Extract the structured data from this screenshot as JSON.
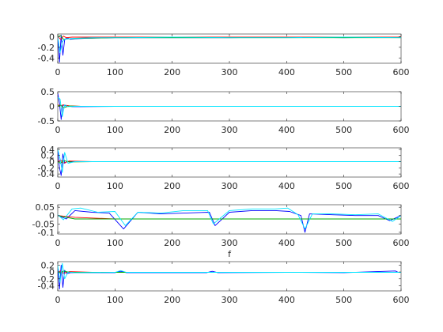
{
  "figure": {
    "background": "#ffffff"
  },
  "chart_data": [
    {
      "type": "line",
      "title": "",
      "xlabel": "",
      "ylabel": "",
      "xlim": [
        0,
        600
      ],
      "ylim": [
        -0.5,
        0.05
      ],
      "xticks": [
        0,
        100,
        200,
        300,
        400,
        500,
        600
      ],
      "yticks": [
        0,
        -0.2,
        -0.4
      ],
      "ytick_labels": [
        "0",
        "-0.2",
        "-0.4"
      ],
      "series": [
        {
          "color": "#0000ff",
          "x": [
            0,
            3,
            6,
            9,
            12,
            16,
            22,
            30,
            50,
            100,
            200,
            300,
            400,
            500,
            600
          ],
          "y": [
            0,
            -0.48,
            0.03,
            -0.35,
            -0.06,
            -0.02,
            -0.05,
            -0.04,
            -0.03,
            -0.02,
            -0.02,
            -0.02,
            -0.01,
            -0.02,
            -0.01
          ]
        },
        {
          "color": "#ff0000",
          "x": [
            0,
            5,
            10,
            15,
            25,
            60,
            150,
            300,
            450,
            600
          ],
          "y": [
            0,
            -0.05,
            0.01,
            -0.02,
            -0.01,
            -0.01,
            -0.01,
            -0.01,
            -0.01,
            -0.01
          ]
        },
        {
          "color": "#00aa00",
          "x": [
            0,
            5,
            10,
            20,
            40,
            100,
            250,
            400,
            600
          ],
          "y": [
            0,
            0.02,
            -0.05,
            -0.04,
            -0.03,
            -0.02,
            -0.02,
            -0.02,
            -0.02
          ]
        },
        {
          "color": "#00e5ff",
          "x": [
            0,
            4,
            8,
            12,
            18,
            30,
            60,
            120,
            200,
            300,
            400,
            500,
            600
          ],
          "y": [
            0,
            -0.3,
            -0.1,
            -0.05,
            -0.04,
            -0.03,
            -0.02,
            -0.02,
            -0.01,
            -0.02,
            -0.02,
            -0.01,
            -0.02
          ]
        }
      ]
    },
    {
      "type": "line",
      "title": "",
      "xlabel": "",
      "ylabel": "",
      "xlim": [
        0,
        600
      ],
      "ylim": [
        -0.5,
        0.5
      ],
      "xticks": [
        0,
        100,
        200,
        300,
        400,
        500,
        600
      ],
      "yticks": [
        0.5,
        0,
        -0.5
      ],
      "ytick_labels": [
        "0.5",
        "0",
        "-0.5"
      ],
      "series": [
        {
          "color": "#0000ff",
          "x": [
            0,
            3,
            6,
            9,
            13,
            18,
            25,
            40,
            100,
            200,
            300,
            400,
            500,
            600
          ],
          "y": [
            0.45,
            0.1,
            -0.45,
            0.05,
            0.02,
            0.02,
            -0.01,
            -0.01,
            0,
            0,
            0,
            0,
            0,
            0
          ]
        },
        {
          "color": "#ff0000",
          "x": [
            0,
            5,
            10,
            20,
            40,
            100,
            300,
            600
          ],
          "y": [
            0.05,
            0.02,
            0.05,
            0.02,
            0,
            0,
            0,
            0
          ]
        },
        {
          "color": "#00aa00",
          "x": [
            0,
            5,
            10,
            20,
            40,
            100,
            300,
            600
          ],
          "y": [
            0,
            0.05,
            -0.05,
            0.01,
            0,
            0,
            0,
            0
          ]
        },
        {
          "color": "#00e5ff",
          "x": [
            0,
            4,
            8,
            12,
            18,
            30,
            100,
            300,
            600
          ],
          "y": [
            0.3,
            0.25,
            -0.35,
            0.05,
            -0.01,
            0,
            0,
            0,
            0
          ]
        }
      ]
    },
    {
      "type": "line",
      "title": "",
      "xlabel": "",
      "ylabel": "",
      "xlim": [
        0,
        600
      ],
      "ylim": [
        -0.5,
        0.45
      ],
      "xticks": [
        0,
        100,
        200,
        300,
        400,
        500,
        600
      ],
      "yticks": [
        0.4,
        0.2,
        0,
        -0.2,
        -0.4
      ],
      "ytick_labels": [
        "0.4",
        "0.2",
        "0",
        "-0.2",
        "-0.4"
      ],
      "series": [
        {
          "color": "#0000ff",
          "x": [
            0,
            3,
            6,
            9,
            12,
            16,
            22,
            40,
            100,
            300,
            600
          ],
          "y": [
            0.35,
            -0.2,
            -0.45,
            0.25,
            -0.05,
            0,
            0,
            0,
            0,
            0,
            0
          ]
        },
        {
          "color": "#ff0000",
          "x": [
            0,
            5,
            10,
            20,
            60,
            300,
            600
          ],
          "y": [
            0,
            0.05,
            -0.05,
            0.02,
            0,
            0,
            0
          ]
        },
        {
          "color": "#00aa00",
          "x": [
            0,
            5,
            10,
            20,
            60,
            300,
            600
          ],
          "y": [
            0,
            -0.05,
            0.04,
            -0.01,
            0,
            0,
            0
          ]
        },
        {
          "color": "#00e5ff",
          "x": [
            0,
            4,
            8,
            12,
            18,
            30,
            100,
            300,
            600
          ],
          "y": [
            0.4,
            0.1,
            -0.35,
            0.3,
            -0.05,
            0,
            0,
            0,
            0
          ]
        }
      ]
    },
    {
      "type": "line",
      "title": "",
      "xlabel": "f",
      "ylabel": "",
      "xlim": [
        0,
        600
      ],
      "ylim": [
        -0.11,
        0.065
      ],
      "xticks": [
        0,
        100,
        200,
        300,
        400,
        500,
        600
      ],
      "yticks": [
        0.05,
        0,
        -0.05,
        -0.1
      ],
      "ytick_labels": [
        "0.05",
        "0",
        "-0.05",
        "-0.1"
      ],
      "series": [
        {
          "color": "#0000ff",
          "x": [
            0,
            15,
            30,
            60,
            90,
            115,
            140,
            180,
            220,
            265,
            275,
            300,
            340,
            380,
            405,
            425,
            432,
            440,
            480,
            520,
            560,
            580,
            600
          ],
          "y": [
            0,
            -0.02,
            0.03,
            0.02,
            0.015,
            -0.08,
            0.02,
            0.01,
            0.015,
            0.02,
            -0.06,
            0.02,
            0.03,
            0.03,
            0.025,
            0.0,
            -0.1,
            0.01,
            0.005,
            0.0,
            0.0,
            -0.03,
            0.0
          ]
        },
        {
          "color": "#ff0000",
          "x": [
            0,
            15,
            30,
            100,
            300,
            600
          ],
          "y": [
            0,
            -0.005,
            -0.01,
            -0.02,
            -0.02,
            -0.02
          ]
        },
        {
          "color": "#00aa00",
          "x": [
            0,
            15,
            30,
            100,
            200,
            300,
            400,
            500,
            600
          ],
          "y": [
            0,
            -0.01,
            -0.02,
            -0.02,
            -0.02,
            -0.02,
            -0.02,
            -0.02,
            -0.02
          ]
        },
        {
          "color": "#00e5ff",
          "x": [
            0,
            10,
            25,
            40,
            70,
            100,
            118,
            140,
            180,
            220,
            262,
            272,
            300,
            340,
            380,
            402,
            420,
            432,
            445,
            480,
            520,
            560,
            585,
            600
          ],
          "y": [
            0.005,
            -0.025,
            0.04,
            0.045,
            0.02,
            0.025,
            -0.06,
            0.02,
            0.015,
            0.03,
            0.03,
            -0.05,
            0.03,
            0.04,
            0.04,
            0.045,
            0.005,
            -0.08,
            0.01,
            0.01,
            0.005,
            0.01,
            -0.035,
            0.0
          ]
        }
      ]
    },
    {
      "type": "line",
      "title": "",
      "xlabel": "",
      "ylabel": "",
      "xlim": [
        0,
        600
      ],
      "ylim": [
        -0.55,
        0.3
      ],
      "xticks": [
        0,
        100,
        200,
        300,
        400,
        500,
        600
      ],
      "yticks": [
        0.2,
        0,
        -0.2,
        -0.4
      ],
      "ytick_labels": [
        "0.2",
        "0",
        "-0.2",
        "-0.4"
      ],
      "series": [
        {
          "color": "#0000ff",
          "x": [
            0,
            3,
            6,
            9,
            12,
            16,
            22,
            40,
            100,
            110,
            120,
            200,
            260,
            270,
            280,
            400,
            500,
            590,
            595,
            600
          ],
          "y": [
            0.1,
            -0.5,
            0.2,
            -0.45,
            0.05,
            -0.05,
            -0.02,
            -0.02,
            -0.02,
            0.02,
            -0.02,
            -0.02,
            -0.02,
            0.02,
            -0.02,
            -0.01,
            -0.02,
            0.03,
            -0.01,
            -0.01
          ]
        },
        {
          "color": "#ff0000",
          "x": [
            0,
            5,
            10,
            20,
            60,
            300,
            600
          ],
          "y": [
            0,
            0.03,
            -0.04,
            0.01,
            -0.01,
            -0.01,
            -0.01
          ]
        },
        {
          "color": "#00aa00",
          "x": [
            0,
            5,
            10,
            20,
            60,
            300,
            600
          ],
          "y": [
            0,
            -0.03,
            0.03,
            -0.01,
            -0.01,
            -0.01,
            -0.01
          ]
        },
        {
          "color": "#00e5ff",
          "x": [
            0,
            4,
            8,
            12,
            18,
            30,
            100,
            110,
            120,
            300,
            500,
            600
          ],
          "y": [
            0.2,
            -0.3,
            0.25,
            -0.2,
            0.0,
            -0.02,
            -0.01,
            0.04,
            -0.01,
            -0.01,
            -0.01,
            -0.01
          ]
        }
      ]
    }
  ]
}
